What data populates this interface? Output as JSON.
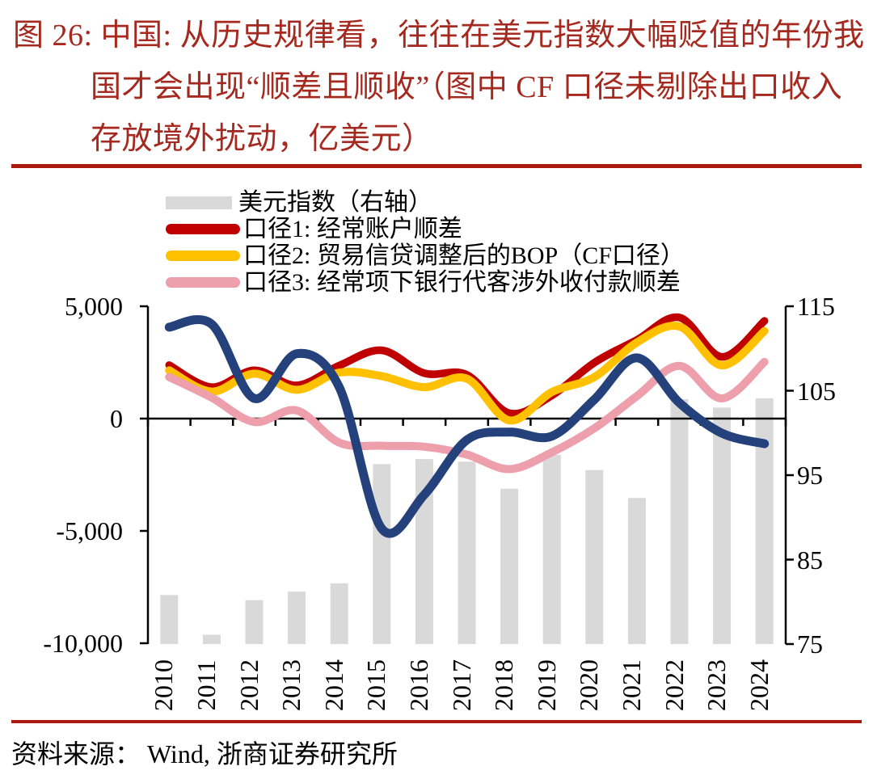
{
  "title": {
    "lines": [
      "图 26:  中国:  从历史规律看，往往在美元指数大幅贬值的年份我",
      "国才会出现“顺差且顺收”（图中 CF 口径未剔除出口收入",
      "存放境外扰动，亿美元）"
    ],
    "color": "#A5291F"
  },
  "separator_color": "#AC1A0E",
  "legend": [
    {
      "key": "usd-index",
      "label": "美元指数（右轴）",
      "swatch": "bar",
      "color": "#D9D9D9"
    },
    {
      "key": "caliber1",
      "label": "口径1:  经常账户顺差",
      "swatch": "line",
      "color": "#C00000"
    },
    {
      "key": "caliber2",
      "label": "口径2:  贸易信贷调整后的BOP（CF口径）",
      "swatch": "line",
      "color": "#FFC000"
    },
    {
      "key": "caliber3",
      "label": "口径3:  经常项下银行代客涉外收付款顺差",
      "swatch": "line",
      "color": "#ED9FAB"
    }
  ],
  "source": {
    "text": "资料来源：  Wind,  浙商证券研究所"
  },
  "chart_data": {
    "type": "combo-bar-line",
    "grid": false,
    "legend_position": "top-left-inside",
    "categories": [
      "2010",
      "2011",
      "2012",
      "2013",
      "2014",
      "2015",
      "2016",
      "2017",
      "2018",
      "2019",
      "2020",
      "2021",
      "2022",
      "2023",
      "2024"
    ],
    "left_axis": {
      "tick_labels": [
        "5,000",
        "0",
        "-5,000",
        "-10,000"
      ],
      "tick_values": [
        5000,
        0,
        -5000,
        -10000
      ],
      "min": -10000,
      "max": 5000,
      "unit": "亿美元"
    },
    "right_axis": {
      "tick_labels": [
        "115",
        "105",
        "95",
        "85",
        "75"
      ],
      "tick_values": [
        115,
        105,
        95,
        85,
        75
      ],
      "min": 75,
      "max": 115,
      "unit": "指数"
    },
    "series": [
      {
        "key": "usd-index-bars",
        "name": "美元指数（右轴）",
        "type": "bar",
        "axis": "right",
        "color": "#D9D9D9",
        "values": [
          80.8,
          76.1,
          80.2,
          81.2,
          82.2,
          96.3,
          96.9,
          96.6,
          93.4,
          97.4,
          95.6,
          92.3,
          104.0,
          103.0,
          104.1
        ]
      },
      {
        "key": "current-account-line",
        "name": "口径1: 经常账户顺差",
        "type": "line",
        "axis": "left",
        "color": "#C00000",
        "width": 9.5,
        "values": [
          2380,
          1400,
          2150,
          1480,
          2360,
          3040,
          2020,
          1950,
          240,
          1030,
          2490,
          3500,
          4500,
          2750,
          4350
        ]
      },
      {
        "key": "cf-bop-line",
        "name": "口径2: 贸易信贷调整后的BOP（CF口径）",
        "type": "line",
        "axis": "left",
        "color": "#FFC000",
        "width": 10,
        "values": [
          2150,
          1200,
          2000,
          1280,
          2050,
          1890,
          1400,
          1780,
          -80,
          1180,
          1850,
          3390,
          4100,
          2370,
          3900
        ]
      },
      {
        "key": "bank-cross-border-line",
        "name": "口径3: 经常项下银行代客涉外收付款顺差",
        "type": "line",
        "axis": "left",
        "color": "#ED9FAB",
        "width": 10,
        "values": [
          1850,
          930,
          -150,
          360,
          -1070,
          -1210,
          -1250,
          -1600,
          -2250,
          -1500,
          -430,
          1000,
          2350,
          900,
          2520
        ]
      },
      {
        "key": "unlabeled-navy-line",
        "name": "",
        "type": "line",
        "axis": "left",
        "color": "#24417B",
        "width": 11,
        "values": [
          4070,
          4200,
          900,
          2890,
          1400,
          -4900,
          -3390,
          -950,
          -600,
          -780,
          850,
          2700,
          700,
          -650,
          -1120
        ]
      }
    ]
  }
}
